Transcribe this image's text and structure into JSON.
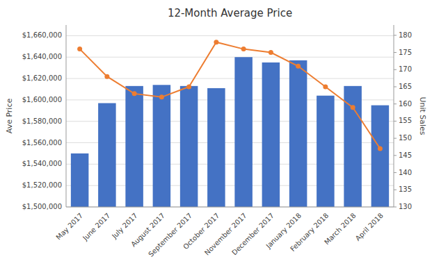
{
  "chart_data": {
    "type": "bar",
    "title": "12-Month Average Price",
    "categories": [
      "May 2017",
      "June 2017",
      "July 2017",
      "August 2017",
      "September 2017",
      "October 2017",
      "November 2017",
      "December 2017",
      "January 2018",
      "February 2018",
      "March 2018",
      "April 2018"
    ],
    "series": [
      {
        "type": "bar",
        "color": "#4472C4",
        "values": [
          1550000,
          1597000,
          1613000,
          1614000,
          1613000,
          1611000,
          1640000,
          1635000,
          1637000,
          1604000,
          1613000,
          1595000
        ]
      },
      {
        "type": "line",
        "axis": "y2",
        "color": "#ED7D31",
        "marker": "circle",
        "line_style": "solid",
        "values": [
          176,
          168,
          163,
          162,
          165,
          178,
          176,
          175,
          171,
          165,
          159,
          147
        ]
      }
    ],
    "ylabel": "Ave Price",
    "y2label": "Unit Sales",
    "ylim": [
      1500000,
      1670000
    ],
    "yticks": [
      {
        "value": 1500000,
        "label": "$1,500,000"
      },
      {
        "value": 1520000,
        "label": "$1,520,000"
      },
      {
        "value": 1540000,
        "label": "$1,540,000"
      },
      {
        "value": 1560000,
        "label": "$1,560,000"
      },
      {
        "value": 1580000,
        "label": "$1,580,000"
      },
      {
        "value": 1600000,
        "label": "$1,600,000"
      },
      {
        "value": 1620000,
        "label": "$1,620,000"
      },
      {
        "value": 1640000,
        "label": "$1,640,000"
      },
      {
        "value": 1660000,
        "label": "$1,660,000"
      }
    ],
    "y2lim": [
      130,
      183
    ],
    "y2ticks": [
      130,
      135,
      140,
      145,
      150,
      155,
      160,
      165,
      170,
      175,
      180
    ],
    "grid": true
  }
}
